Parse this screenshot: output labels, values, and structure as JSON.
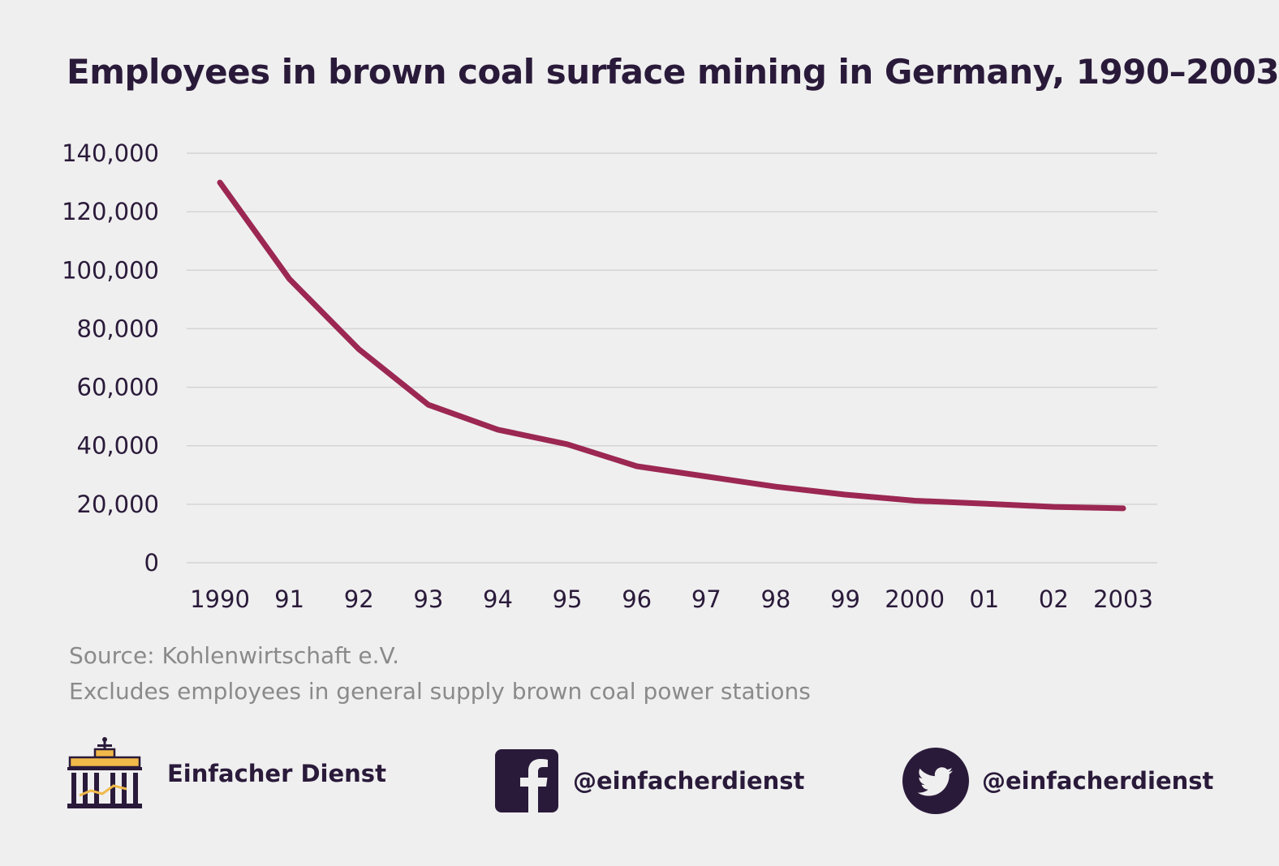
{
  "chart_data": {
    "type": "line",
    "title": "Employees in brown coal surface mining in Germany, 1990–2003",
    "x": [
      1990,
      1991,
      1992,
      1993,
      1994,
      1995,
      1996,
      1997,
      1998,
      1999,
      2000,
      2001,
      2002,
      2003
    ],
    "x_tick_labels": [
      "1990",
      "91",
      "92",
      "93",
      "94",
      "95",
      "96",
      "97",
      "98",
      "99",
      "2000",
      "01",
      "02",
      "2003"
    ],
    "series": [
      {
        "values": [
          130000,
          97000,
          73000,
          54000,
          45500,
          40500,
          33000,
          29500,
          26000,
          23300,
          21200,
          20200,
          19100,
          18600
        ],
        "color": "#9b2752"
      }
    ],
    "y_ticks": [
      0,
      20000,
      40000,
      60000,
      80000,
      100000,
      120000,
      140000
    ],
    "y_tick_labels": [
      "0",
      "20,000",
      "40,000",
      "60,000",
      "80,000",
      "100,000",
      "120,000",
      "140,000"
    ],
    "ylim": [
      0,
      140000
    ],
    "xlabel": "",
    "ylabel": "",
    "grid": true,
    "colors": {
      "grid": "#d4d4d4",
      "text": "#2a1a3a"
    }
  },
  "notes": {
    "source": "Source: Kohlenwirtschaft e.V.",
    "exclusion": "Excludes employees in general supply brown coal power stations"
  },
  "footer": {
    "brand_name": "Einfacher Dienst",
    "brand_icon": "brandenburg-gate-icon",
    "facebook_handle": "@einfacherdienst",
    "facebook_icon": "facebook-icon",
    "twitter_handle": "@einfacherdienst",
    "twitter_icon": "twitter-bird-icon",
    "colors": {
      "dark": "#2a1a3a",
      "accent": "#f0b94a"
    }
  }
}
